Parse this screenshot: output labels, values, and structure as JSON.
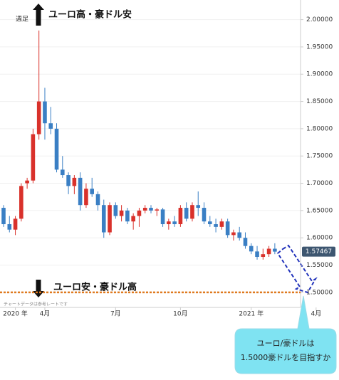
{
  "chart_data": {
    "type": "candlestick",
    "annotations": {
      "period": "週足",
      "upper_note": "ユーロ高・豪ドル安",
      "lower_note": "ユーロ安・豪ドル高",
      "disclaimer": "チャートデータは参考レートです",
      "callout_lines": [
        "ユーロ/豪ドルは",
        "1.5000豪ドルを目指すか"
      ]
    },
    "categories": [
      null,
      null,
      "2020 年",
      null,
      null,
      null,
      null,
      "4月",
      null,
      null,
      null,
      null,
      null,
      null,
      null,
      null,
      null,
      null,
      null,
      "7月",
      null,
      null,
      null,
      null,
      null,
      null,
      null,
      null,
      null,
      null,
      "10月",
      null,
      null,
      null,
      null,
      null,
      null,
      null,
      null,
      null,
      null,
      null,
      "2021 年",
      null,
      null,
      null,
      null,
      null,
      null,
      null,
      null,
      null,
      null,
      "4月"
    ],
    "open": [
      1.655,
      1.625,
      1.615,
      1.635,
      1.7,
      1.705,
      1.79,
      1.85,
      1.81,
      1.8,
      1.725,
      1.715,
      1.695,
      1.71,
      1.66,
      1.69,
      1.68,
      1.66,
      1.61,
      1.66,
      1.64,
      1.65,
      1.63,
      1.64,
      1.65,
      1.655,
      1.65,
      1.652,
      1.625,
      1.63,
      1.625,
      1.655,
      1.635,
      1.66,
      1.655,
      1.63,
      1.625,
      1.62,
      1.63,
      1.605,
      1.61,
      1.6,
      1.585,
      1.575,
      1.565,
      1.57,
      1.58,
      null,
      null,
      null,
      null,
      null,
      null,
      null
    ],
    "high": [
      1.66,
      1.64,
      1.64,
      1.7,
      1.71,
      1.8,
      1.98,
      1.875,
      1.84,
      1.81,
      1.75,
      1.72,
      1.715,
      1.72,
      1.7,
      1.71,
      1.685,
      1.67,
      1.665,
      1.665,
      1.66,
      1.655,
      1.645,
      1.655,
      1.66,
      1.66,
      1.655,
      1.655,
      1.635,
      1.64,
      1.66,
      1.665,
      1.665,
      1.685,
      1.665,
      1.64,
      1.635,
      1.635,
      1.635,
      1.615,
      1.62,
      1.61,
      1.59,
      1.585,
      1.58,
      1.585,
      1.59,
      null,
      null,
      null,
      null,
      null,
      null,
      null
    ],
    "low": [
      1.62,
      1.61,
      1.605,
      1.63,
      1.69,
      1.7,
      1.78,
      1.78,
      1.79,
      1.72,
      1.71,
      1.68,
      1.68,
      1.65,
      1.655,
      1.675,
      1.65,
      1.6,
      1.605,
      1.635,
      1.63,
      1.625,
      1.615,
      1.62,
      1.645,
      1.645,
      1.64,
      1.62,
      1.615,
      1.62,
      1.62,
      1.63,
      1.63,
      1.64,
      1.625,
      1.62,
      1.61,
      1.615,
      1.6,
      1.595,
      1.595,
      1.58,
      1.57,
      1.56,
      1.56,
      1.565,
      1.57,
      null,
      null,
      null,
      null,
      null,
      null,
      null
    ],
    "close": [
      1.625,
      1.615,
      1.635,
      1.695,
      1.705,
      1.79,
      1.85,
      1.81,
      1.8,
      1.725,
      1.715,
      1.695,
      1.71,
      1.66,
      1.69,
      1.68,
      1.66,
      1.61,
      1.66,
      1.64,
      1.65,
      1.63,
      1.64,
      1.65,
      1.655,
      1.65,
      1.652,
      1.625,
      1.63,
      1.625,
      1.655,
      1.635,
      1.66,
      1.655,
      1.63,
      1.625,
      1.62,
      1.63,
      1.605,
      1.61,
      1.6,
      1.585,
      1.575,
      1.565,
      1.57,
      1.58,
      1.57467,
      null,
      null,
      null,
      null,
      null,
      null,
      null
    ],
    "up_color": "#d9312b",
    "down_color": "#3a7fc4",
    "ylim": [
      1.475,
      2.036
    ],
    "yticks": [
      {
        "value": 1.5,
        "label": "1.50000"
      },
      {
        "value": 1.55,
        "label": "1.55000"
      },
      {
        "value": 1.6,
        "label": "1.60000"
      },
      {
        "value": 1.65,
        "label": "1.65000"
      },
      {
        "value": 1.7,
        "label": "1.70000"
      },
      {
        "value": 1.75,
        "label": "1.75000"
      },
      {
        "value": 1.8,
        "label": "1.80000"
      },
      {
        "value": 1.85,
        "label": "1.85000"
      },
      {
        "value": 1.9,
        "label": "1.90000"
      },
      {
        "value": 1.95,
        "label": "1.95000"
      },
      {
        "value": 2.0,
        "label": "2.00000"
      }
    ],
    "grid": true,
    "reference_line": 1.5,
    "reference_color": "#e07a1f"
  }
}
